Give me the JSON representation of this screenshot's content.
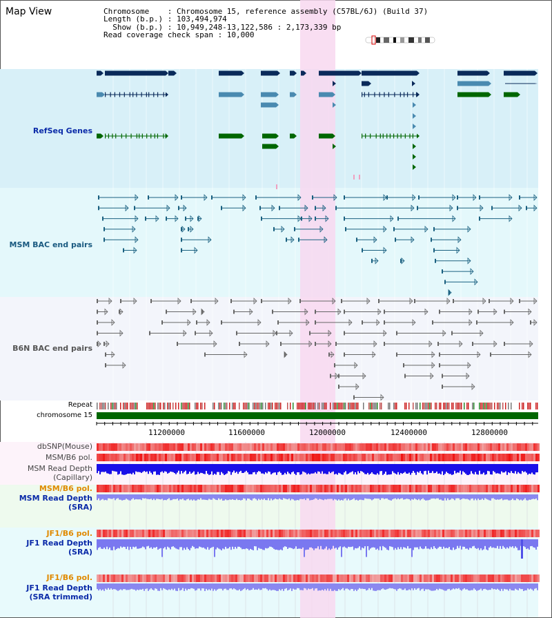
{
  "title": "Map View",
  "info": {
    "line1": "Chromosome    : Chromosome 15, reference assembly (C57BL/6J) (Build 37)",
    "line2": "Length (b.p.) : 103,494,974",
    "line3": "  Show (b.p.) : 10,949,248-13,122,586 : 2,173,339 bp",
    "line4": "Read coverage check span : 10,000"
  },
  "tracks": {
    "refseq": "RefSeq Genes",
    "msm_bac": "MSM BAC end pairs",
    "b6n_bac": "B6N BAC end pairs",
    "repeat": "Repeat",
    "chromosome": "chromosome 15",
    "dbsnp": "dbSNP(Mouse)",
    "msm_pol": "MSM/B6 pol.",
    "msm_depth_cap_1": "MSM Read Depth",
    "msm_depth_cap_2": "(Capillary)",
    "msm_pol_sra": "MSM/B6 pol.",
    "msm_depth_sra_1": "MSM Read Depth",
    "msm_depth_sra_2": "(SRA)",
    "jf1_pol": "JF1/B6 pol.",
    "jf1_depth_1": "JF1 Read Depth",
    "jf1_depth_2": "(SRA)",
    "jf1_pol_trim": "JF1/B6 pol.",
    "jf1_trim_1": "JF1 Read Depth",
    "jf1_trim_2": "(SRA trimmed)"
  },
  "axis": {
    "ticks": [
      "11200000",
      "11600000",
      "12000000",
      "12400000",
      "12800000"
    ]
  },
  "colors": {
    "refseq_bg": "#d8f0f8",
    "msm_bg": "#e4f8fb",
    "b6n_bg": "#f3f5fb",
    "highlight": "#f8d8f0",
    "gene_navy": "#0a2a5a",
    "gene_blue": "#4a8ab0",
    "gene_green": "#006600",
    "msm_line": "#1a6080",
    "b6n_line": "#666666",
    "chrom": "#006600",
    "depth_blue": "#1a10e8",
    "depth_light": "#7a78f0",
    "orange_label": "#e08a00",
    "blue_label": "#0a2aa8",
    "teal_label": "#1a5a80"
  }
}
